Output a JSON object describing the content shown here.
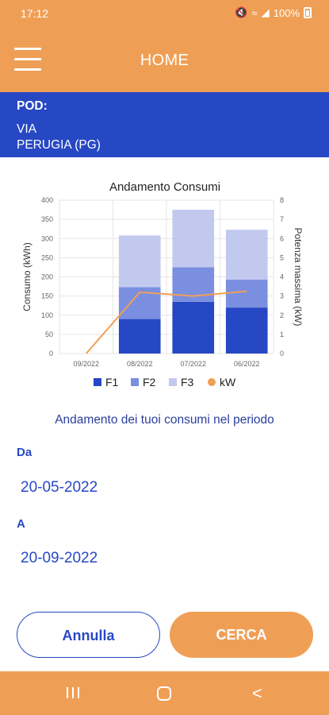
{
  "status_bar": {
    "time": "17:12",
    "battery": "100%",
    "icons": [
      "mute-icon",
      "wifi-icon",
      "signal-icon",
      "battery-icon"
    ]
  },
  "app_bar": {
    "title": "HOME",
    "menu_icon": "hamburger-menu-icon"
  },
  "pod": {
    "label": "POD:",
    "address_line1": "VIA",
    "address_line2": "PERUGIA (PG)"
  },
  "colors": {
    "accent": "#ef9f55",
    "primary": "#2748c4",
    "f1": "#2748c4",
    "f2": "#7b8fe0",
    "f3": "#c1c9ef",
    "kw": "#ef9f55"
  },
  "chart_data": {
    "type": "bar",
    "title": "Andamento Consumi",
    "ylabel": "Consumo (kWh)",
    "y2label": "Potenza massima (kW)",
    "categories": [
      "09/2022",
      "08/2022",
      "07/2022",
      "06/2022"
    ],
    "ylim": [
      0,
      400
    ],
    "yticks": [
      0,
      50,
      100,
      150,
      200,
      250,
      300,
      350,
      400
    ],
    "y2lim": [
      0,
      8
    ],
    "y2ticks": [
      0,
      1,
      2,
      3,
      4,
      5,
      6,
      7,
      8
    ],
    "stacked": true,
    "series": [
      {
        "name": "F1",
        "type": "bar",
        "values": [
          0,
          90,
          135,
          120
        ]
      },
      {
        "name": "F2",
        "type": "bar",
        "values": [
          0,
          83,
          90,
          73
        ]
      },
      {
        "name": "F3",
        "type": "bar",
        "values": [
          0,
          135,
          150,
          130
        ]
      },
      {
        "name": "kW",
        "type": "line",
        "axis": "right",
        "values": [
          0,
          3.2,
          3.0,
          3.25
        ]
      }
    ],
    "legend": [
      "F1",
      "F2",
      "F3",
      "kW"
    ],
    "legend_position": "bottom"
  },
  "period": {
    "title": "Andamento dei tuoi consumi nel periodo",
    "from_label": "Da",
    "from_value": "20-05-2022",
    "to_label": "A",
    "to_value": "20-09-2022"
  },
  "buttons": {
    "cancel": "Annulla",
    "search": "CERCA"
  },
  "nav_bar": {
    "icons": [
      "recent-apps-icon",
      "home-icon",
      "back-icon"
    ],
    "back_glyph": "<"
  }
}
